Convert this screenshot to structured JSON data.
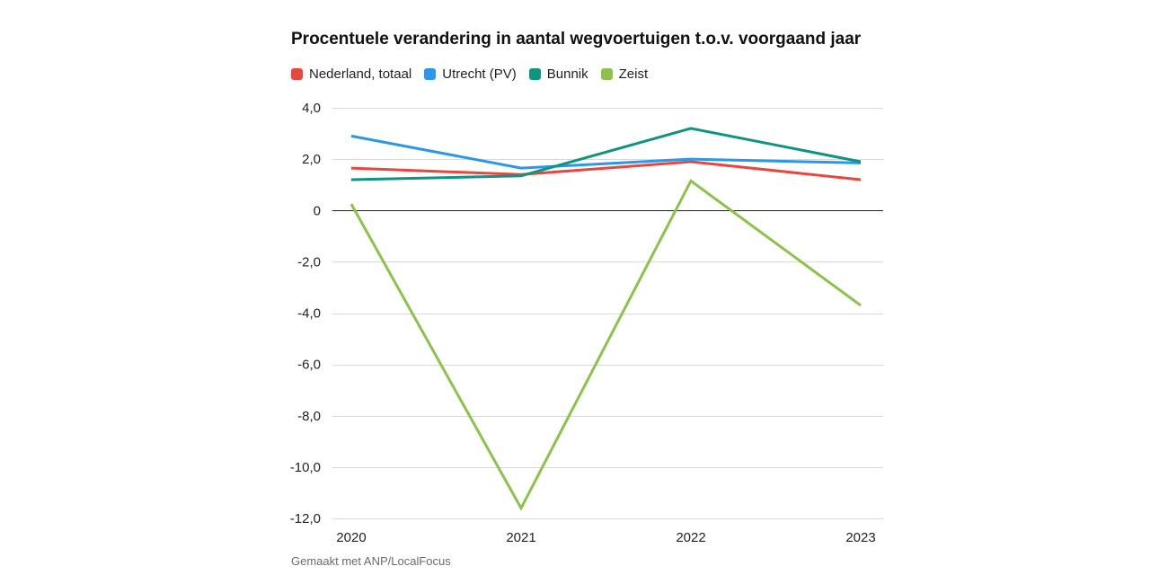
{
  "chart_data": {
    "type": "line",
    "title": "Procentuele verandering in aantal wegvoertuigen t.o.v. voorgaand jaar",
    "categories": [
      "2020",
      "2021",
      "2022",
      "2023"
    ],
    "y_ticks": [
      4,
      2,
      0,
      -2,
      -4,
      -6,
      -8,
      -10,
      -12
    ],
    "y_tick_labels": [
      "4,0",
      "2,0",
      "0",
      "-2,0",
      "-4,0",
      "-6,0",
      "-8,0",
      "-10,0",
      "-12,0"
    ],
    "ylim": [
      -12,
      4
    ],
    "xlabel": "",
    "ylabel": "",
    "grid": true,
    "legend_position": "top-left",
    "series": [
      {
        "name": "Nederland, totaal",
        "color": "#e8473f",
        "values": [
          1.65,
          1.4,
          1.9,
          1.2
        ]
      },
      {
        "name": "Utrecht (PV)",
        "color": "#2b97e8",
        "values": [
          2.9,
          1.65,
          2.0,
          1.85
        ]
      },
      {
        "name": "Bunnik",
        "color": "#0e9481",
        "values": [
          1.2,
          1.35,
          3.2,
          1.9
        ]
      },
      {
        "name": "Zeist",
        "color": "#8bc34a",
        "values": [
          0.25,
          -11.6,
          1.15,
          -3.7
        ]
      }
    ],
    "source_note": "Gemaakt met ANP/LocalFocus"
  }
}
